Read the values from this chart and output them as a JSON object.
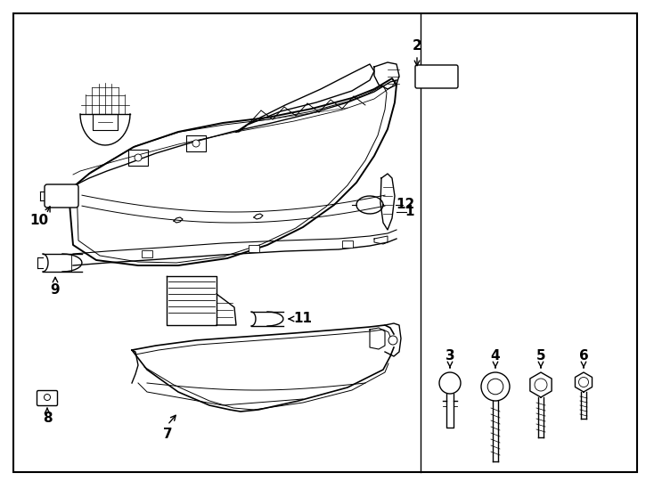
{
  "bg_color": "#ffffff",
  "line_color": "#000000",
  "fig_width": 7.34,
  "fig_height": 5.4,
  "dpi": 100,
  "label_fontsize": 11,
  "border": [
    15,
    15,
    700,
    515
  ]
}
